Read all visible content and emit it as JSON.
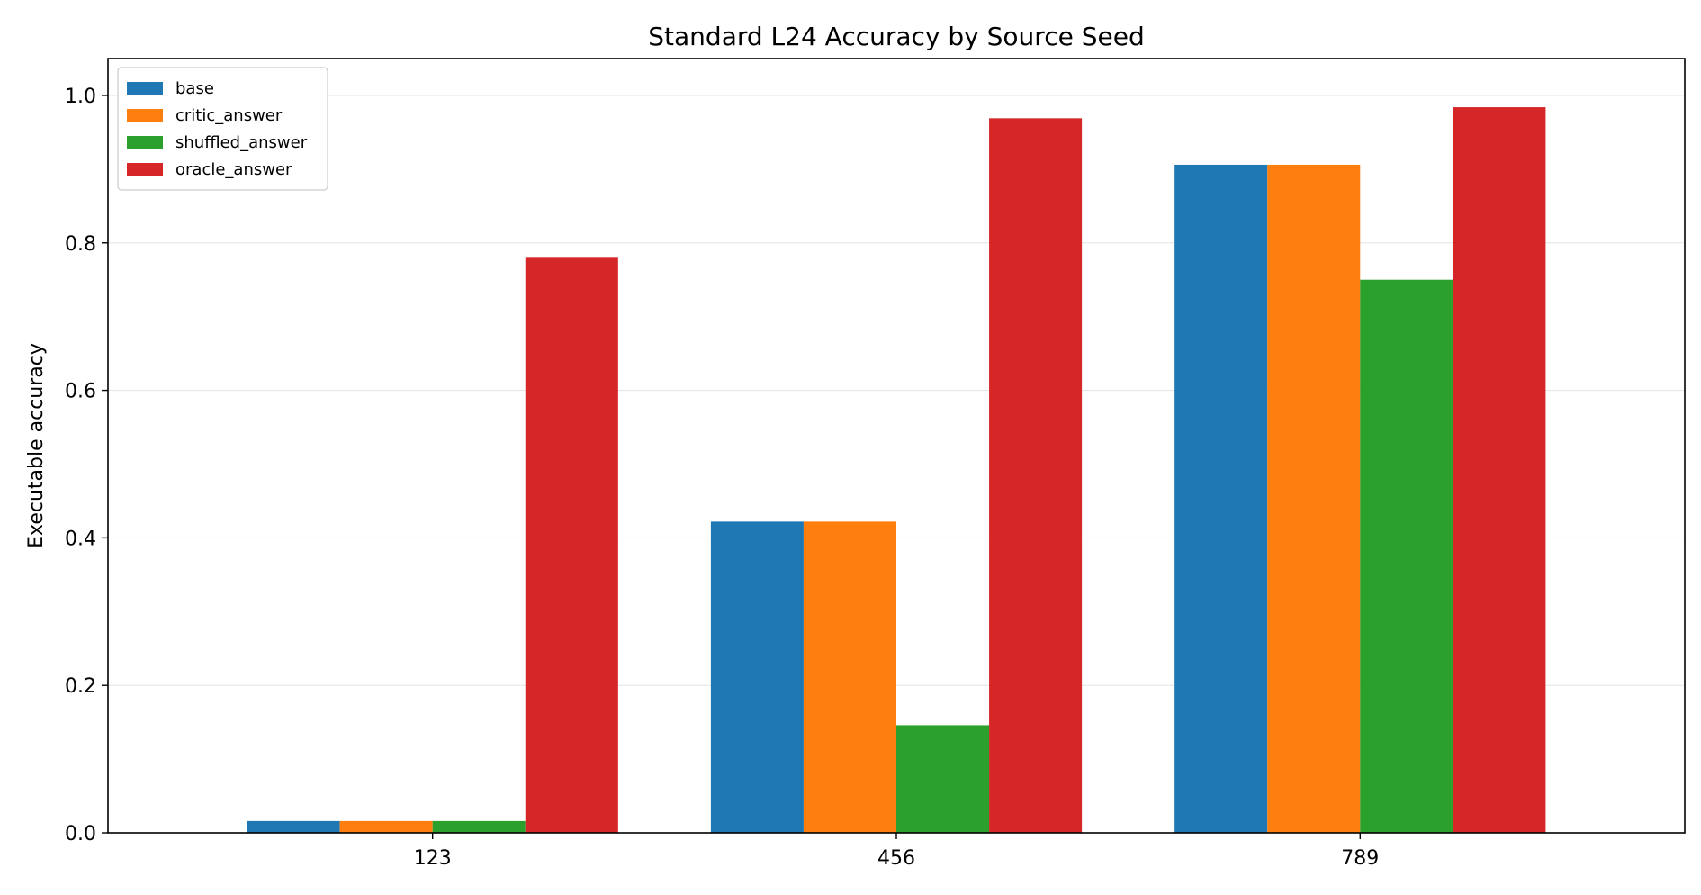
{
  "chart_data": {
    "type": "bar",
    "title": "Standard L24 Accuracy by Source Seed",
    "xlabel": "",
    "ylabel": "Executable accuracy",
    "categories": [
      "123",
      "456",
      "789"
    ],
    "series": [
      {
        "name": "base",
        "color": "#1f77b4",
        "values": [
          0.016,
          0.422,
          0.906
        ]
      },
      {
        "name": "critic_answer",
        "color": "#ff7f0e",
        "values": [
          0.016,
          0.422,
          0.906
        ]
      },
      {
        "name": "shuffled_answer",
        "color": "#2ca02c",
        "values": [
          0.016,
          0.146,
          0.75
        ]
      },
      {
        "name": "oracle_answer",
        "color": "#d62728",
        "values": [
          0.781,
          0.969,
          0.984
        ]
      }
    ],
    "ylim": [
      0,
      1.05
    ],
    "yticks": [
      0.0,
      0.2,
      0.4,
      0.6,
      0.8,
      1.0
    ],
    "ytick_labels": [
      "0.0",
      "0.2",
      "0.4",
      "0.6",
      "0.8",
      "1.0"
    ],
    "grid": "horizontal",
    "legend_position": "top-left"
  }
}
